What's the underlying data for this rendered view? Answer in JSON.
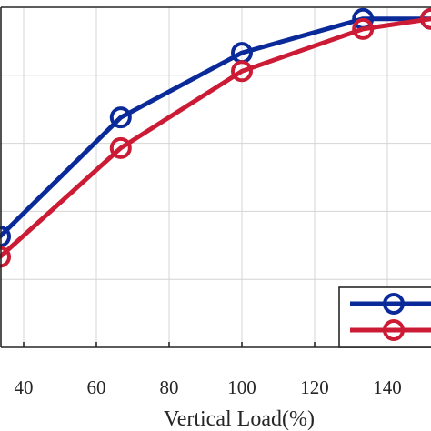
{
  "chart_data": {
    "type": "line",
    "xlabel": "Vertical Load(%)",
    "ylabel": "",
    "x_ticks": [
      40,
      60,
      80,
      100,
      120,
      140
    ],
    "xlim": [
      33.5,
      152
    ],
    "ylim": [
      0,
      1
    ],
    "grid": true,
    "legend_position": "bottom-right",
    "series": [
      {
        "color": "#0a2a9a",
        "x": [
          33.5,
          66.7,
          100,
          133.3,
          152
        ],
        "y": [
          0.326,
          0.676,
          0.866,
          0.966,
          0.966
        ]
      },
      {
        "color": "#cc1b35",
        "x": [
          33.5,
          66.7,
          100,
          133.3,
          152
        ],
        "y": [
          0.266,
          0.586,
          0.812,
          0.936,
          0.966
        ]
      }
    ]
  }
}
